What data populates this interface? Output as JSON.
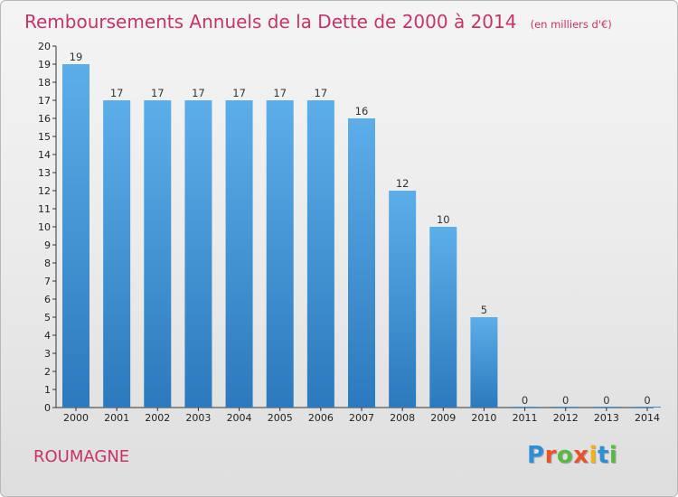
{
  "title": "Remboursements Annuels de la Dette de 2000 à 2014",
  "unit": "(en milliers d'€)",
  "commune": "ROUMAGNE",
  "logo": {
    "text": "Proxiti"
  },
  "colors": {
    "bar_light": "#5caee9",
    "bar_dark": "#2c79bd",
    "title": "#c8336a",
    "logo": [
      "#2d8fd6",
      "#e8532b",
      "#59b947",
      "#e8532b",
      "#f2b11e",
      "#2d8fd6",
      "#59b947"
    ]
  },
  "chart_data": {
    "type": "bar",
    "title": "Remboursements Annuels de la Dette de 2000 à 2014",
    "ylabel": "(en milliers d'€)",
    "xlabel": "",
    "categories": [
      "2000",
      "2001",
      "2002",
      "2003",
      "2004",
      "2005",
      "2006",
      "2007",
      "2008",
      "2009",
      "2010",
      "2011",
      "2012",
      "2013",
      "2014"
    ],
    "values": [
      19,
      17,
      17,
      17,
      17,
      17,
      17,
      16,
      12,
      10,
      5,
      0,
      0,
      0,
      0
    ],
    "ylim": [
      0,
      20
    ],
    "yticks": [
      0,
      1,
      2,
      3,
      4,
      5,
      6,
      7,
      8,
      9,
      10,
      11,
      12,
      13,
      14,
      15,
      16,
      17,
      18,
      19,
      20
    ],
    "grid": false,
    "legend": "none"
  }
}
